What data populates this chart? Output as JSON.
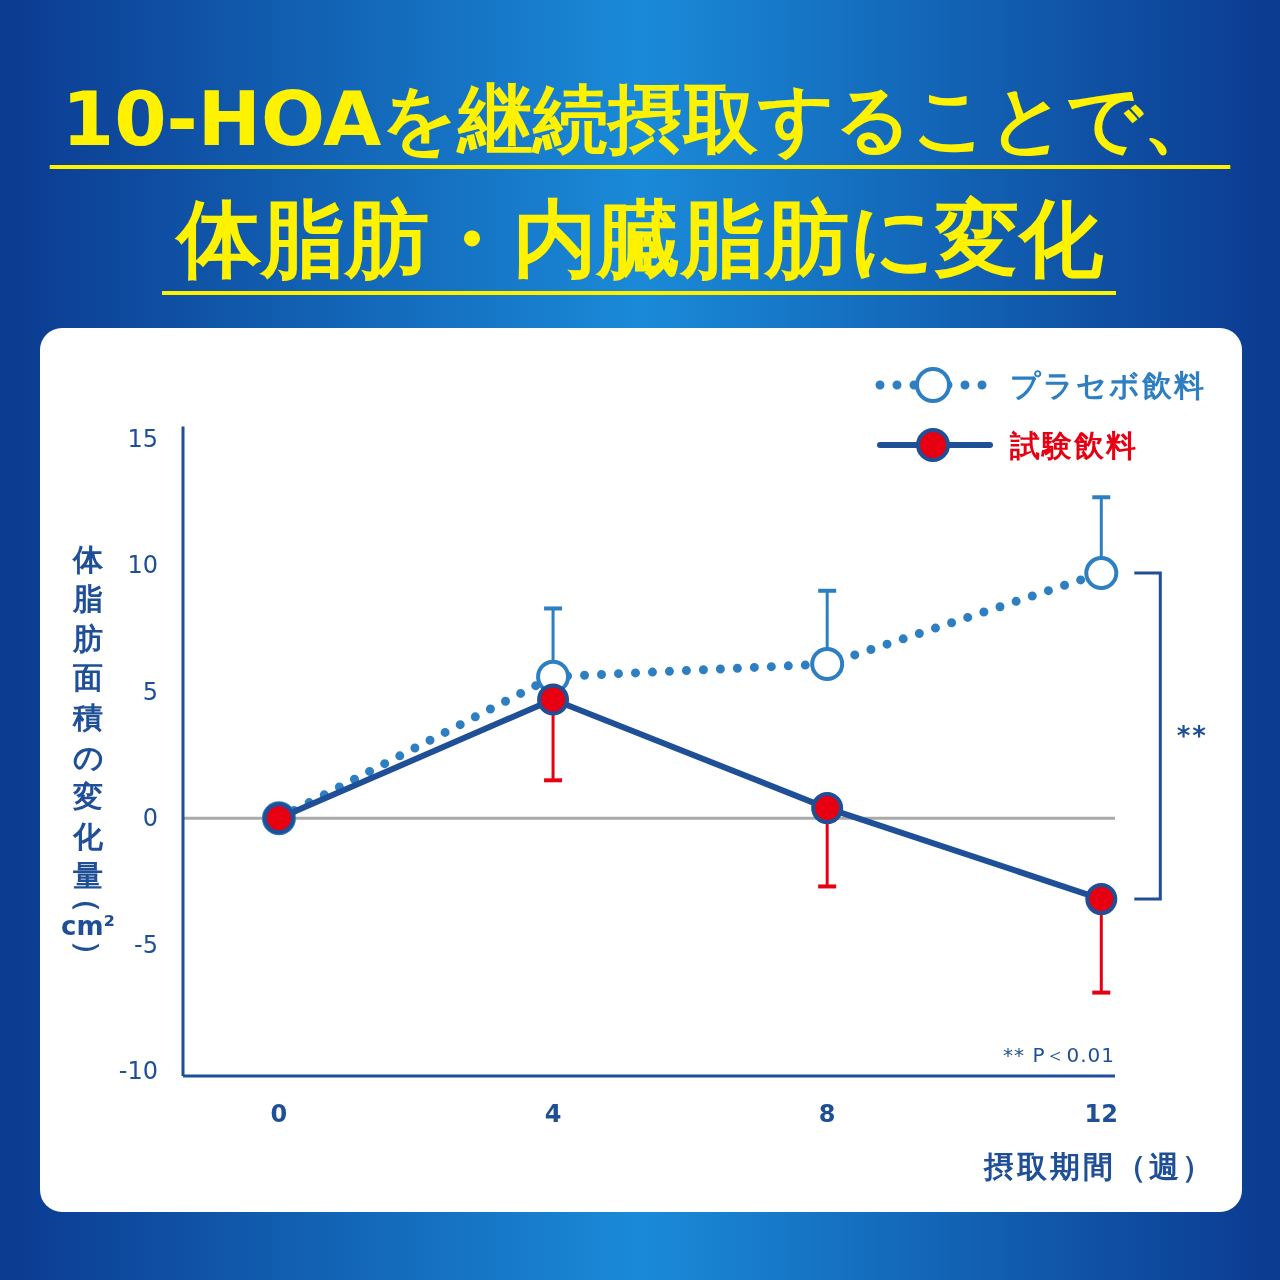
{
  "chart_data": {
    "type": "line",
    "title": "10-HOAを継続摂取することで、",
    "subtitle": "体脂肪・内臓脂肪に変化",
    "xlabel": "摂取期間（週）",
    "ylabel": "体脂肪面積の変化量（cm²）",
    "x": [
      0,
      4,
      8,
      12
    ],
    "xlim": [
      -1.4,
      12.2
    ],
    "ylim": [
      -10.2,
      15.5
    ],
    "xticks": [
      0,
      4,
      8,
      12
    ],
    "yticks": [
      -10,
      -5,
      0,
      5,
      10,
      15
    ],
    "grid": false,
    "legend": "top right",
    "marker": "circle",
    "series": [
      {
        "name": "プラセボ飲料",
        "color": "#2e7fc1",
        "line_style": "dotted",
        "values": [
          0,
          5.6,
          6.1,
          9.7
        ],
        "errors": [
          null,
          [
            5.6,
            8.3
          ],
          [
            6.1,
            9.0
          ],
          [
            9.7,
            12.7
          ]
        ]
      },
      {
        "name": "試験飲料",
        "color": "#e60012",
        "line_style": "solid",
        "values": [
          0,
          4.7,
          0.4,
          -3.2
        ],
        "errors": [
          null,
          [
            1.5,
            4.7
          ],
          [
            -2.7,
            0.4
          ],
          [
            -6.9,
            -3.2
          ]
        ]
      }
    ],
    "ref_lines": [
      {
        "axis": "y",
        "value": 0,
        "color": "#aaaaaa"
      }
    ],
    "annotations": [
      "**",
      "** P＜0.01"
    ]
  }
}
